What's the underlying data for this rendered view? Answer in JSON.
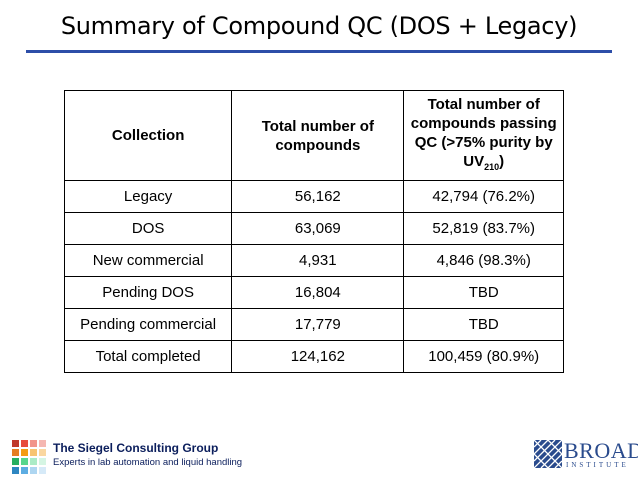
{
  "slide": {
    "title": "Summary of Compound QC (DOS + Legacy)"
  },
  "table": {
    "headers": {
      "collection": "Collection",
      "total": "Total number of compounds",
      "passing_main": "Total number of compounds passing QC (>75% purity by UV",
      "passing_sub": "210",
      "passing_end": ")"
    },
    "rows": [
      {
        "collection": "Legacy",
        "total": "56,162",
        "passing": "42,794 (76.2%)"
      },
      {
        "collection": "DOS",
        "total": "63,069",
        "passing": "52,819 (83.7%)"
      },
      {
        "collection": "New commercial",
        "total": "4,931",
        "passing": "4,846 (98.3%)"
      },
      {
        "collection": "Pending DOS",
        "total": "16,804",
        "passing": "TBD"
      },
      {
        "collection": "Pending commercial",
        "total": "17,779",
        "passing": "TBD"
      },
      {
        "collection": "Total completed",
        "total": "124,162",
        "passing": "100,459 (80.9%)"
      }
    ]
  },
  "footer": {
    "company_name": "The Siegel Consulting Group",
    "company_tagline": "Experts in lab automation and liquid handling",
    "broad_word": "BROAD",
    "broad_sub": "INSTITUTE",
    "logo_colors": [
      "#c0392b",
      "#e74c3c",
      "#f1948a",
      "#f5b7b1",
      "#e67e22",
      "#f39c12",
      "#f8c471",
      "#fad7a0",
      "#27ae60",
      "#58d68d",
      "#abebc6",
      "#d5f5e3",
      "#2e86c1",
      "#5dade2",
      "#aed6f1",
      "#d6eaf8"
    ]
  }
}
